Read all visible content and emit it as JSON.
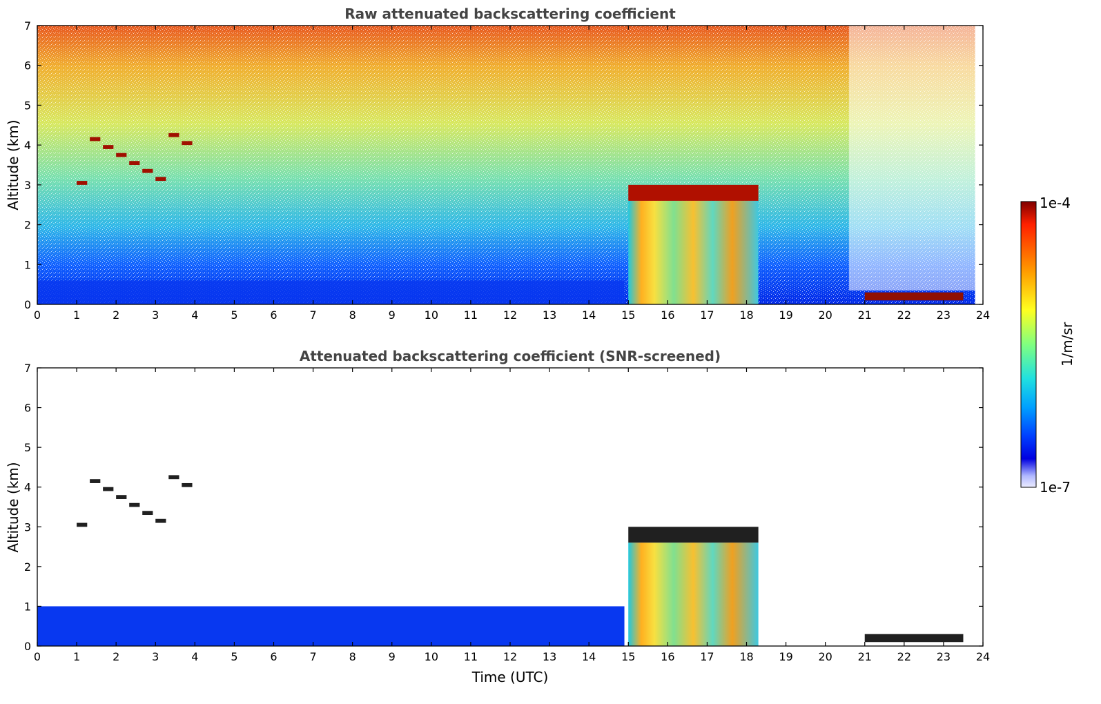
{
  "chart_data": [
    {
      "type": "heatmap",
      "title": "Raw attenuated backscattering coefficient",
      "xlabel": "",
      "ylabel": "Altitude (km)",
      "xlim": [
        0,
        24
      ],
      "ylim": [
        0,
        7
      ],
      "x_ticks": [
        "0",
        "1",
        "2",
        "3",
        "4",
        "5",
        "6",
        "7",
        "8",
        "9",
        "10",
        "11",
        "12",
        "13",
        "14",
        "15",
        "16",
        "17",
        "18",
        "19",
        "20",
        "21",
        "22",
        "23",
        "24"
      ],
      "y_ticks": [
        "0",
        "1",
        "2",
        "3",
        "4",
        "5",
        "6",
        "7"
      ],
      "colormap": "jet",
      "clim": [
        "1e-7",
        "1e-4"
      ],
      "features": [
        {
          "kind": "clear-air noise",
          "x": [
            0,
            24
          ],
          "y": [
            0,
            7
          ]
        },
        {
          "kind": "boundary layer",
          "x": [
            0,
            14.9
          ],
          "y": [
            0,
            0.6
          ]
        },
        {
          "kind": "cloud layer",
          "x": [
            15,
            18.3
          ],
          "y": [
            2.6,
            3.0
          ]
        },
        {
          "kind": "precipitation",
          "x": [
            15,
            18.3
          ],
          "y": [
            0,
            2.6
          ]
        },
        {
          "kind": "high cloud fragments",
          "x": [
            1,
            4
          ],
          "y": [
            3.0,
            4.3
          ]
        },
        {
          "kind": "low cloud",
          "x": [
            21,
            23.5
          ],
          "y": [
            0.1,
            0.3
          ]
        }
      ]
    },
    {
      "type": "heatmap",
      "title": "Attenuated backscattering coefficient (SNR-screened)",
      "xlabel": "Time (UTC)",
      "ylabel": "Altitude (km)",
      "xlim": [
        0,
        24
      ],
      "ylim": [
        0,
        7
      ],
      "x_ticks": [
        "0",
        "1",
        "2",
        "3",
        "4",
        "5",
        "6",
        "7",
        "8",
        "9",
        "10",
        "11",
        "12",
        "13",
        "14",
        "15",
        "16",
        "17",
        "18",
        "19",
        "20",
        "21",
        "22",
        "23",
        "24"
      ],
      "y_ticks": [
        "0",
        "1",
        "2",
        "3",
        "4",
        "5",
        "6",
        "7"
      ],
      "colormap": "jet",
      "clim": [
        "1e-7",
        "1e-4"
      ],
      "features": [
        {
          "kind": "boundary layer",
          "x": [
            0,
            14.9
          ],
          "y": [
            0,
            1.0
          ]
        },
        {
          "kind": "cloud layer",
          "x": [
            15,
            18.3
          ],
          "y": [
            2.6,
            3.0
          ]
        },
        {
          "kind": "precipitation",
          "x": [
            15,
            18.3
          ],
          "y": [
            0,
            2.6
          ]
        },
        {
          "kind": "high cloud fragments",
          "x": [
            1,
            4
          ],
          "y": [
            3.0,
            4.3
          ]
        },
        {
          "kind": "low cloud",
          "x": [
            21,
            23.5
          ],
          "y": [
            0.1,
            0.3
          ]
        }
      ]
    }
  ],
  "colorbar": {
    "label": "1/m/sr",
    "max_label": "1e-4",
    "min_label": "1e-7",
    "stops": [
      "#800000",
      "#ff2000",
      "#ffa000",
      "#ffff20",
      "#80ff80",
      "#20e0e0",
      "#00a0ff",
      "#0040ff",
      "#0000e0",
      "#b0b8ff",
      "#ececff"
    ]
  }
}
